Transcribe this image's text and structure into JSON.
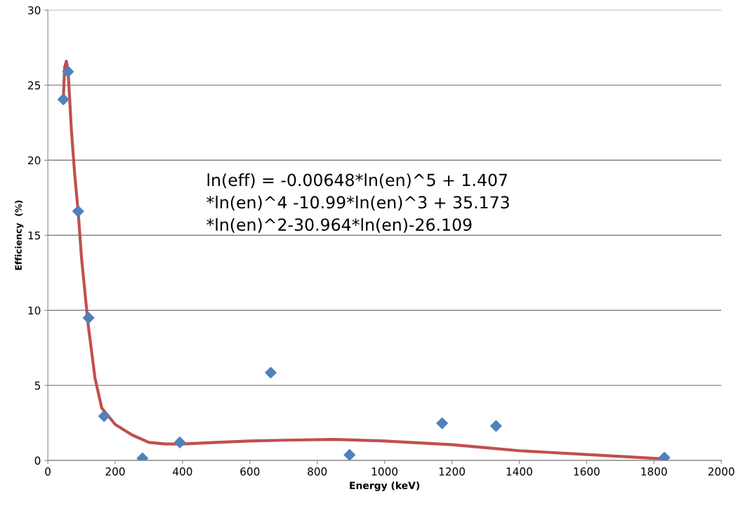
{
  "chart_data": {
    "type": "scatter",
    "xlabel": "Energy (keV)",
    "ylabel": "Efficiency  (%)",
    "xlim": [
      0,
      2000
    ],
    "xticks": [
      0,
      200,
      400,
      600,
      800,
      1000,
      1200,
      1400,
      1600,
      1800,
      2000
    ],
    "ylim": [
      0,
      30
    ],
    "yticks": [
      0,
      5,
      10,
      15,
      20,
      25,
      30
    ],
    "grid": "y",
    "legend": false,
    "marker": "diamond",
    "series": [
      {
        "type": "line",
        "color": "#c0504d",
        "marker": "none",
        "line_style": "solid",
        "x": [
          46,
          50,
          55,
          60,
          70,
          80,
          90,
          100,
          120,
          140,
          160,
          200,
          250,
          300,
          350,
          400,
          500,
          600,
          700,
          850,
          1000,
          1200,
          1300,
          1400,
          1600,
          1835
        ],
        "values": [
          24.1,
          26.2,
          26.6,
          26.0,
          22,
          19,
          16.6,
          13.5,
          9,
          5.5,
          3.5,
          2.4,
          1.7,
          1.2,
          1.1,
          1.1,
          1.2,
          1.3,
          1.35,
          1.4,
          1.3,
          1.05,
          0.85,
          0.65,
          0.4,
          0.1
        ]
      },
      {
        "color": "#4f81bd",
        "x": [
          46,
          60,
          90,
          121,
          167,
          281,
          392,
          662,
          896,
          1171,
          1331,
          1831
        ],
        "values": [
          24.05,
          25.9,
          16.6,
          9.5,
          2.95,
          0.14,
          1.2,
          5.85,
          0.37,
          2.48,
          2.3,
          0.19
        ]
      }
    ],
    "annotations": [
      {
        "text": "ln(eff) = -0.00648*ln(en)^5 + 1.407\n*ln(en)^4 -10.99*ln(en)^3 + 35.173\n*ln(en)^2-30.964*ln(en)-26.109"
      }
    ]
  }
}
